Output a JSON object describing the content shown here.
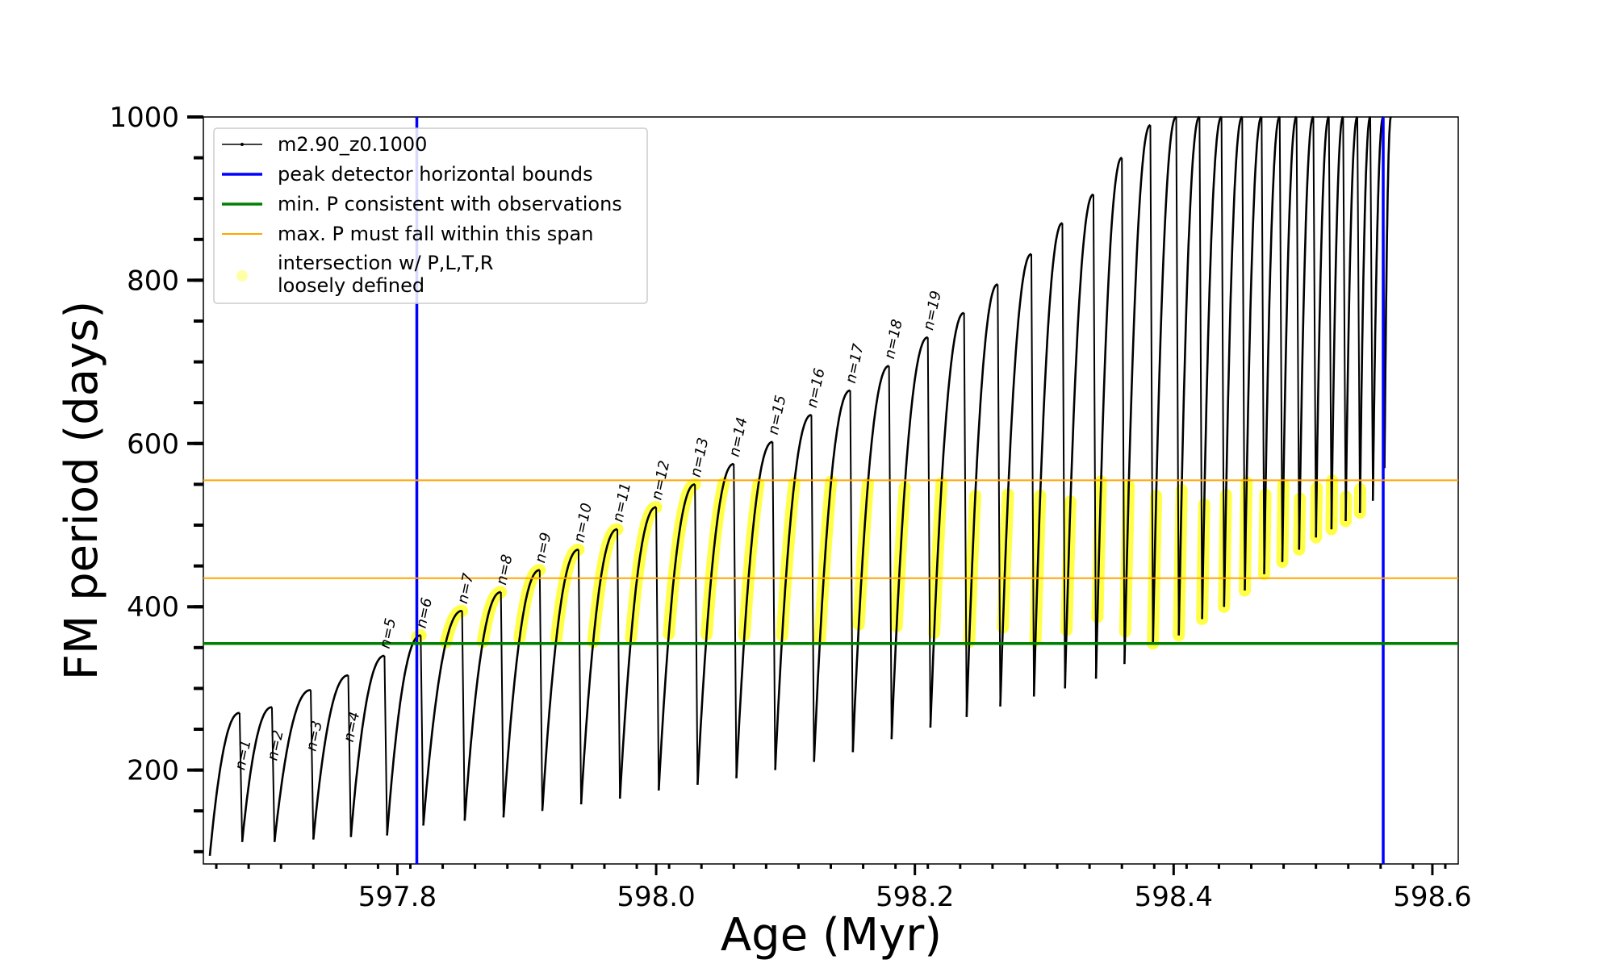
{
  "chart_data": {
    "type": "line",
    "xlabel": "Age (Myr)",
    "ylabel": "FM period (days)",
    "xlim": [
      597.65,
      598.62
    ],
    "ylim": [
      85,
      1000
    ],
    "xticks": [
      597.8,
      598.0,
      598.2,
      598.4,
      598.6
    ],
    "xtick_labels": [
      "597.8",
      "598.0",
      "598.2",
      "598.4",
      "598.6"
    ],
    "yticks": [
      200,
      400,
      600,
      800,
      1000
    ],
    "ytick_labels": [
      "200",
      "400",
      "600",
      "800",
      "1000"
    ],
    "grid": false,
    "legend": {
      "placement": "top-left",
      "entries": [
        {
          "label": "m2.90_z0.1000",
          "color": "#000000",
          "style": "line-marker"
        },
        {
          "label": "peak detector horizontal bounds",
          "color": "#0000ff",
          "style": "line"
        },
        {
          "label": "min. P consistent with observations",
          "color": "#008000",
          "style": "line"
        },
        {
          "label": "max. P must fall within this span",
          "color": "#ffa500",
          "style": "line"
        },
        {
          "label": "intersection w/ P,L,T,R",
          "label2": "loosely defined",
          "color": "#ffff00",
          "style": "marker"
        }
      ]
    },
    "reference_lines": {
      "vertical_blue": [
        597.815,
        598.562
      ],
      "horizontal_green": 355,
      "horizontal_orange": [
        435,
        555
      ]
    },
    "pulse_labels": [
      "n=1",
      "n=2",
      "n=3",
      "n=4",
      "n=5",
      "n=6",
      "n=7",
      "n=8",
      "n=9",
      "n=10",
      "n=11",
      "n=12",
      "n=13",
      "n=14",
      "n=15",
      "n=16",
      "n=17",
      "n=18",
      "n=19"
    ],
    "series": [
      {
        "name": "m2.90_z0.1000",
        "color": "#000000",
        "cycles": [
          {
            "x_start": 597.655,
            "x_end": 597.678,
            "y_start": 95,
            "y_peak": 270
          },
          {
            "x_start": 597.68,
            "x_end": 597.703,
            "y_start": 112,
            "y_peak": 277
          },
          {
            "x_start": 597.705,
            "x_end": 597.733,
            "y_start": 112,
            "y_peak": 298
          },
          {
            "x_start": 597.735,
            "x_end": 597.762,
            "y_start": 115,
            "y_peak": 316
          },
          {
            "x_start": 597.764,
            "x_end": 597.79,
            "y_start": 118,
            "y_peak": 340
          },
          {
            "x_start": 597.792,
            "x_end": 597.818,
            "y_start": 120,
            "y_peak": 365
          },
          {
            "x_start": 597.82,
            "x_end": 597.85,
            "y_start": 132,
            "y_peak": 395
          },
          {
            "x_start": 597.852,
            "x_end": 597.88,
            "y_start": 138,
            "y_peak": 418
          },
          {
            "x_start": 597.882,
            "x_end": 597.91,
            "y_start": 142,
            "y_peak": 445
          },
          {
            "x_start": 597.912,
            "x_end": 597.94,
            "y_start": 150,
            "y_peak": 470
          },
          {
            "x_start": 597.942,
            "x_end": 597.97,
            "y_start": 158,
            "y_peak": 495
          },
          {
            "x_start": 597.972,
            "x_end": 598.0,
            "y_start": 165,
            "y_peak": 522
          },
          {
            "x_start": 598.002,
            "x_end": 598.03,
            "y_start": 175,
            "y_peak": 550
          },
          {
            "x_start": 598.032,
            "x_end": 598.06,
            "y_start": 182,
            "y_peak": 575
          },
          {
            "x_start": 598.062,
            "x_end": 598.09,
            "y_start": 190,
            "y_peak": 602
          },
          {
            "x_start": 598.092,
            "x_end": 598.12,
            "y_start": 200,
            "y_peak": 635
          },
          {
            "x_start": 598.122,
            "x_end": 598.15,
            "y_start": 210,
            "y_peak": 665
          },
          {
            "x_start": 598.152,
            "x_end": 598.18,
            "y_start": 222,
            "y_peak": 695
          },
          {
            "x_start": 598.182,
            "x_end": 598.21,
            "y_start": 238,
            "y_peak": 730
          },
          {
            "x_start": 598.212,
            "x_end": 598.238,
            "y_start": 252,
            "y_peak": 760
          },
          {
            "x_start": 598.24,
            "x_end": 598.264,
            "y_start": 265,
            "y_peak": 795
          },
          {
            "x_start": 598.266,
            "x_end": 598.29,
            "y_start": 278,
            "y_peak": 832
          },
          {
            "x_start": 598.292,
            "x_end": 598.314,
            "y_start": 290,
            "y_peak": 870
          },
          {
            "x_start": 598.316,
            "x_end": 598.338,
            "y_start": 300,
            "y_peak": 905
          },
          {
            "x_start": 598.34,
            "x_end": 598.36,
            "y_start": 312,
            "y_peak": 950
          },
          {
            "x_start": 598.362,
            "x_end": 598.382,
            "y_start": 330,
            "y_peak": 990
          },
          {
            "x_start": 598.384,
            "x_end": 598.402,
            "y_start": 355,
            "y_peak": 1000
          },
          {
            "x_start": 598.404,
            "x_end": 598.42,
            "y_start": 365,
            "y_peak": 1000
          },
          {
            "x_start": 598.422,
            "x_end": 598.437,
            "y_start": 385,
            "y_peak": 1000
          },
          {
            "x_start": 598.439,
            "x_end": 598.453,
            "y_start": 400,
            "y_peak": 1000
          },
          {
            "x_start": 598.455,
            "x_end": 598.468,
            "y_start": 420,
            "y_peak": 1000
          },
          {
            "x_start": 598.47,
            "x_end": 598.482,
            "y_start": 440,
            "y_peak": 1000
          },
          {
            "x_start": 598.484,
            "x_end": 598.495,
            "y_start": 455,
            "y_peak": 1000
          },
          {
            "x_start": 598.497,
            "x_end": 598.508,
            "y_start": 470,
            "y_peak": 1000
          },
          {
            "x_start": 598.51,
            "x_end": 598.52,
            "y_start": 485,
            "y_peak": 1000
          },
          {
            "x_start": 598.522,
            "x_end": 598.531,
            "y_start": 495,
            "y_peak": 1000
          },
          {
            "x_start": 598.533,
            "x_end": 598.542,
            "y_start": 505,
            "y_peak": 1000
          },
          {
            "x_start": 598.544,
            "x_end": 598.552,
            "y_start": 515,
            "y_peak": 1000
          },
          {
            "x_start": 598.554,
            "x_end": 598.562,
            "y_start": 530,
            "y_peak": 1000
          },
          {
            "x_start": 598.563,
            "x_end": 598.568,
            "y_start": 570,
            "y_peak": 1000
          }
        ]
      }
    ],
    "colors": {
      "track": "#000000",
      "bounds": "#0000ff",
      "min_p": "#008000",
      "max_p": "#ffa500",
      "intersection": "#ffff00"
    }
  }
}
